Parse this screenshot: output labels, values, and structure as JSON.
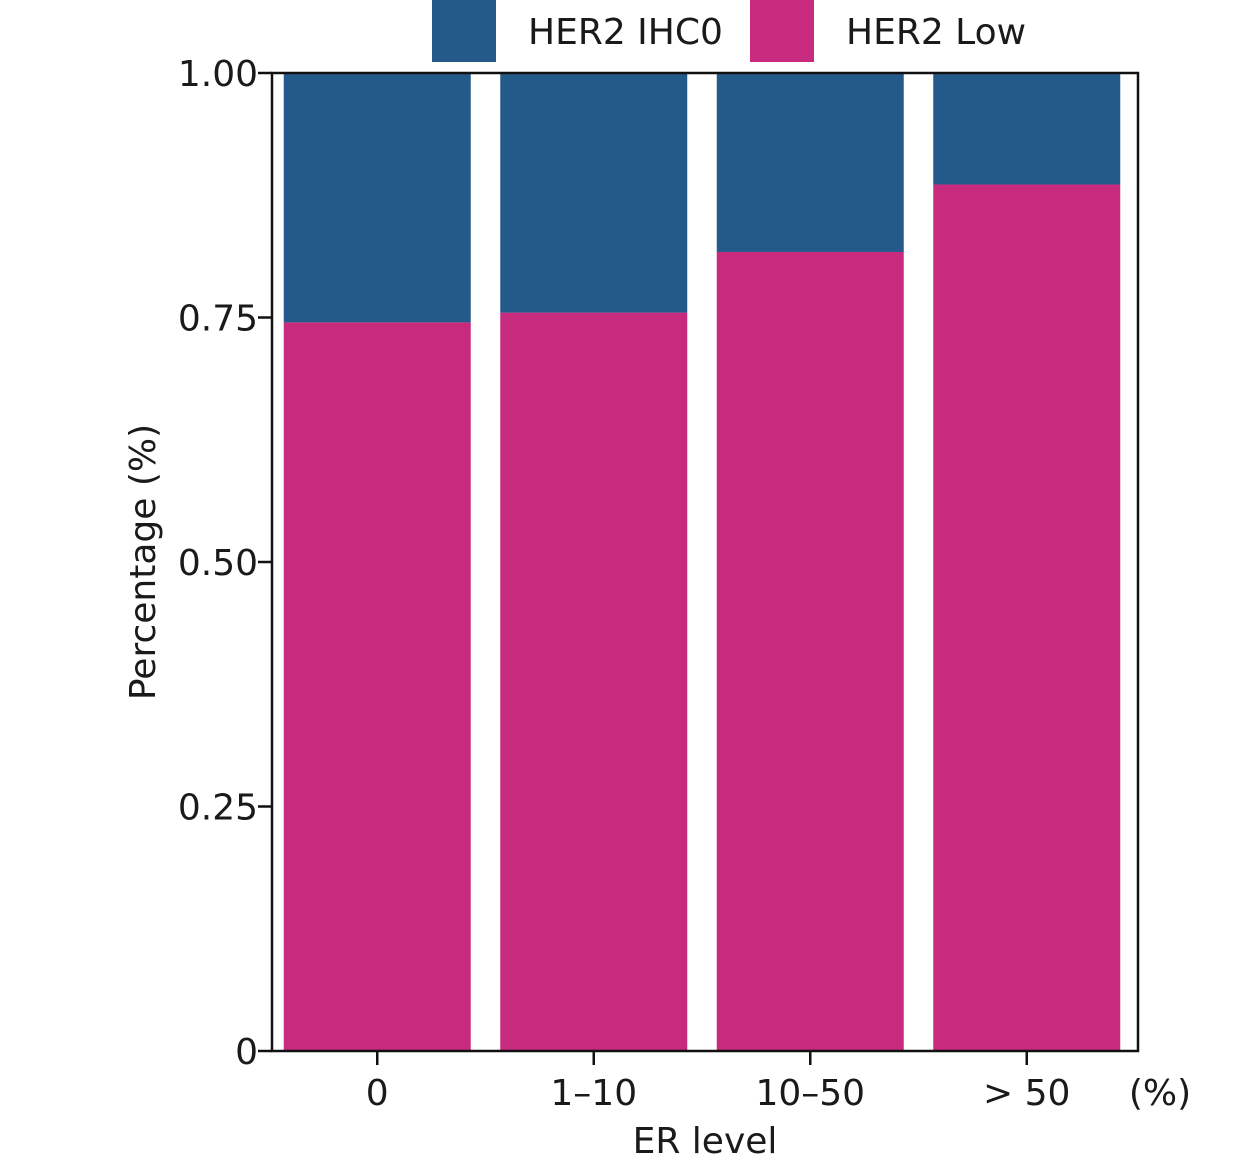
{
  "chart_data": {
    "type": "bar",
    "stacked": true,
    "normalized": true,
    "categories": [
      "0",
      "1–10",
      "10–50",
      "> 50"
    ],
    "x_unit_label": "(%)",
    "xlabel": "ER level",
    "ylabel": "Percentage (%)",
    "ylim": [
      0,
      1
    ],
    "yticks": [
      0,
      0.25,
      0.5,
      0.75,
      1.0
    ],
    "ytick_labels": [
      "0",
      "0.25",
      "0.50",
      "0.75",
      "1.00"
    ],
    "grid": false,
    "legend_position": "top",
    "series": [
      {
        "name": "HER2 Low",
        "color": "#c82b7d",
        "values": [
          0.745,
          0.755,
          0.817,
          0.886
        ]
      },
      {
        "name": "HER2 IHC0",
        "color": "#245a8a",
        "values": [
          0.255,
          0.245,
          0.183,
          0.114
        ]
      }
    ],
    "legend": [
      {
        "label": "HER2 IHC0",
        "color": "#245a8a"
      },
      {
        "label": "HER2 Low",
        "color": "#c82b7d"
      }
    ]
  }
}
